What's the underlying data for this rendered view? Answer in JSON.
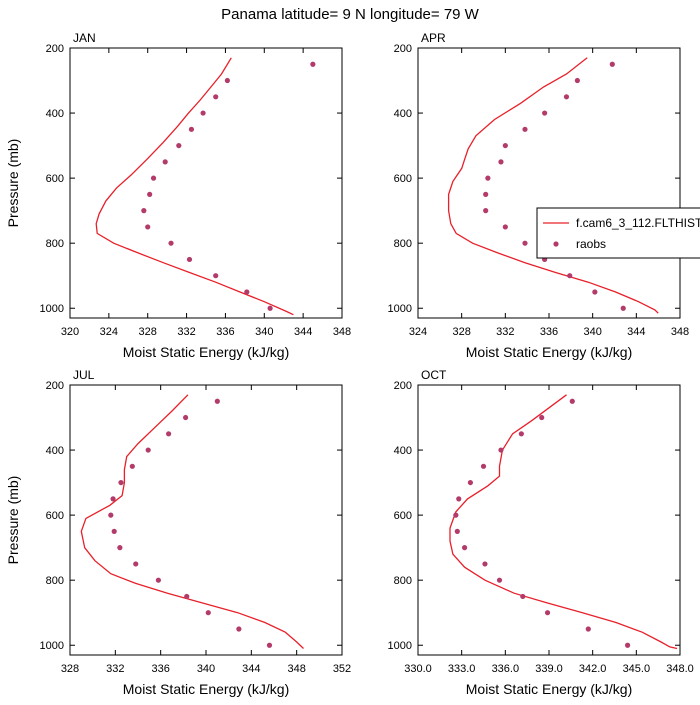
{
  "figure": {
    "title": "Panama  latitude= 9 N longitude= 79 W",
    "legend": {
      "model_label": "f.cam6_3_112.FLTHIST",
      "obs_label": "raobs",
      "placement": "right, overlapping APR panel"
    },
    "colors": {
      "line": "#e8202a",
      "dots": "#b33b6a",
      "frame": "#000000"
    }
  },
  "chart_data": [
    {
      "type": "scatter",
      "panel_label": "JAN",
      "xlabel": "Moist Static Energy (kJ/kg)",
      "ylabel": "Pressure (mb)",
      "xlim": [
        320,
        348
      ],
      "ylim": [
        1030,
        200
      ],
      "x_ticks": [
        320,
        324,
        328,
        332,
        336,
        340,
        344,
        348
      ],
      "x_tick_labels": [
        "320",
        "324",
        "328",
        "332",
        "336",
        "340",
        "344",
        "348"
      ],
      "y_ticks": [
        200,
        400,
        600,
        800,
        1000
      ],
      "y_tick_labels": [
        "200",
        "400",
        "600",
        "800",
        "1000"
      ],
      "series": [
        {
          "kind": "line",
          "points": [
            [
              336.6,
              230
            ],
            [
              335.6,
              280
            ],
            [
              334.5,
              320
            ],
            [
              333.4,
              360
            ],
            [
              332.2,
              400
            ],
            [
              331.1,
              440
            ],
            [
              329.6,
              490
            ],
            [
              328.0,
              540
            ],
            [
              326.3,
              590
            ],
            [
              324.8,
              630
            ],
            [
              323.7,
              670
            ],
            [
              323.0,
              710
            ],
            [
              322.7,
              740
            ],
            [
              322.8,
              770
            ],
            [
              324.5,
              800
            ],
            [
              327.0,
              830
            ],
            [
              329.6,
              860
            ],
            [
              332.3,
              890
            ],
            [
              335.0,
              920
            ],
            [
              337.5,
              950
            ],
            [
              340.0,
              980
            ],
            [
              342.3,
              1010
            ],
            [
              343.0,
              1020
            ]
          ]
        },
        {
          "kind": "dots",
          "points": [
            [
              345.0,
              250
            ],
            [
              336.2,
              300
            ],
            [
              335.0,
              350
            ],
            [
              333.7,
              400
            ],
            [
              332.5,
              450
            ],
            [
              331.2,
              500
            ],
            [
              329.8,
              550
            ],
            [
              328.6,
              600
            ],
            [
              328.2,
              650
            ],
            [
              327.6,
              700
            ],
            [
              328.0,
              750
            ],
            [
              330.4,
              800
            ],
            [
              332.3,
              850
            ],
            [
              335.0,
              900
            ],
            [
              338.2,
              950
            ],
            [
              340.6,
              1000
            ]
          ]
        }
      ]
    },
    {
      "type": "scatter",
      "panel_label": "APR",
      "xlabel": "Moist Static Energy (kJ/kg)",
      "ylabel": "",
      "xlim": [
        324,
        348
      ],
      "ylim": [
        1030,
        200
      ],
      "x_ticks": [
        324,
        328,
        332,
        336,
        340,
        344,
        348
      ],
      "x_tick_labels": [
        "324",
        "328",
        "332",
        "336",
        "340",
        "344",
        "348"
      ],
      "y_ticks": [
        200,
        400,
        600,
        800,
        1000
      ],
      "y_tick_labels": [
        "200",
        "400",
        "600",
        "800",
        "1000"
      ],
      "series": [
        {
          "kind": "line",
          "points": [
            [
              339.5,
              230
            ],
            [
              337.6,
              280
            ],
            [
              335.5,
              320
            ],
            [
              333.4,
              370
            ],
            [
              331.0,
              420
            ],
            [
              329.3,
              470
            ],
            [
              328.6,
              510
            ],
            [
              328.3,
              540
            ],
            [
              328.0,
              570
            ],
            [
              327.2,
              610
            ],
            [
              326.8,
              650
            ],
            [
              326.8,
              700
            ],
            [
              327.0,
              740
            ],
            [
              327.5,
              770
            ],
            [
              329.0,
              800
            ],
            [
              331.3,
              830
            ],
            [
              333.8,
              860
            ],
            [
              336.6,
              890
            ],
            [
              339.6,
              920
            ],
            [
              342.1,
              950
            ],
            [
              344.2,
              980
            ],
            [
              345.7,
              1005
            ],
            [
              346.0,
              1015
            ]
          ]
        },
        {
          "kind": "dots",
          "points": [
            [
              341.8,
              250
            ],
            [
              338.6,
              300
            ],
            [
              337.6,
              350
            ],
            [
              335.6,
              400
            ],
            [
              333.8,
              450
            ],
            [
              332.0,
              500
            ],
            [
              331.6,
              550
            ],
            [
              330.4,
              600
            ],
            [
              330.2,
              650
            ],
            [
              330.2,
              700
            ],
            [
              332.0,
              750
            ],
            [
              333.8,
              800
            ],
            [
              335.6,
              850
            ],
            [
              337.9,
              900
            ],
            [
              340.2,
              950
            ],
            [
              342.8,
              1000
            ]
          ]
        }
      ]
    },
    {
      "type": "scatter",
      "panel_label": "JUL",
      "xlabel": "Moist Static Energy (kJ/kg)",
      "ylabel": "Pressure (mb)",
      "xlim": [
        328,
        352
      ],
      "ylim": [
        1030,
        200
      ],
      "x_ticks": [
        328,
        332,
        336,
        340,
        344,
        348,
        352
      ],
      "x_tick_labels": [
        "328",
        "332",
        "336",
        "340",
        "344",
        "348",
        "352"
      ],
      "y_ticks": [
        200,
        400,
        600,
        800,
        1000
      ],
      "y_tick_labels": [
        "200",
        "400",
        "600",
        "800",
        "1000"
      ],
      "series": [
        {
          "kind": "line",
          "points": [
            [
              338.4,
              230
            ],
            [
              337.0,
              280
            ],
            [
              335.5,
              330
            ],
            [
              334.0,
              380
            ],
            [
              333.0,
              420
            ],
            [
              332.8,
              460
            ],
            [
              332.8,
              500
            ],
            [
              332.6,
              540
            ],
            [
              331.5,
              570
            ],
            [
              329.4,
              610
            ],
            [
              329.0,
              650
            ],
            [
              329.3,
              700
            ],
            [
              330.2,
              740
            ],
            [
              331.6,
              780
            ],
            [
              333.8,
              810
            ],
            [
              336.6,
              840
            ],
            [
              339.7,
              870
            ],
            [
              342.8,
              900
            ],
            [
              345.2,
              930
            ],
            [
              347.0,
              960
            ],
            [
              348.0,
              990
            ],
            [
              348.6,
              1010
            ]
          ]
        },
        {
          "kind": "dots",
          "points": [
            [
              341.0,
              250
            ],
            [
              338.2,
              300
            ],
            [
              336.7,
              350
            ],
            [
              334.9,
              400
            ],
            [
              333.5,
              450
            ],
            [
              332.5,
              500
            ],
            [
              331.8,
              550
            ],
            [
              331.6,
              600
            ],
            [
              331.9,
              650
            ],
            [
              332.4,
              700
            ],
            [
              333.8,
              750
            ],
            [
              335.8,
              800
            ],
            [
              338.3,
              850
            ],
            [
              340.2,
              900
            ],
            [
              342.9,
              950
            ],
            [
              345.6,
              1000
            ]
          ]
        }
      ]
    },
    {
      "type": "scatter",
      "panel_label": "OCT",
      "xlabel": "Moist Static Energy (kJ/kg)",
      "ylabel": "",
      "xlim": [
        330,
        348
      ],
      "ylim": [
        1030,
        200
      ],
      "x_ticks": [
        330,
        333,
        336,
        339,
        342,
        345,
        348
      ],
      "x_tick_labels": [
        "330.0",
        "333.0",
        "336.0",
        "339.0",
        "342.0",
        "345.0",
        "348.0"
      ],
      "y_ticks": [
        200,
        400,
        600,
        800,
        1000
      ],
      "y_tick_labels": [
        "200",
        "400",
        "600",
        "800",
        "1000"
      ],
      "series": [
        {
          "kind": "line",
          "points": [
            [
              340.2,
              230
            ],
            [
              339.0,
              270
            ],
            [
              337.8,
              310
            ],
            [
              336.5,
              350
            ],
            [
              335.8,
              400
            ],
            [
              335.6,
              450
            ],
            [
              335.6,
              480
            ],
            [
              334.8,
              510
            ],
            [
              333.4,
              550
            ],
            [
              332.6,
              590
            ],
            [
              332.2,
              640
            ],
            [
              332.2,
              680
            ],
            [
              332.4,
              720
            ],
            [
              333.2,
              760
            ],
            [
              334.6,
              800
            ],
            [
              336.6,
              840
            ],
            [
              338.9,
              870
            ],
            [
              341.3,
              900
            ],
            [
              343.6,
              930
            ],
            [
              345.4,
              960
            ],
            [
              346.7,
              990
            ],
            [
              347.3,
              1005
            ],
            [
              347.8,
              1010
            ]
          ]
        },
        {
          "kind": "dots",
          "points": [
            [
              340.6,
              250
            ],
            [
              338.5,
              300
            ],
            [
              337.1,
              350
            ],
            [
              335.7,
              400
            ],
            [
              334.5,
              450
            ],
            [
              333.6,
              500
            ],
            [
              332.8,
              550
            ],
            [
              332.6,
              600
            ],
            [
              332.7,
              650
            ],
            [
              333.2,
              700
            ],
            [
              334.6,
              750
            ],
            [
              335.6,
              800
            ],
            [
              337.2,
              850
            ],
            [
              338.9,
              900
            ],
            [
              341.7,
              950
            ],
            [
              344.4,
              1000
            ]
          ]
        }
      ]
    }
  ]
}
